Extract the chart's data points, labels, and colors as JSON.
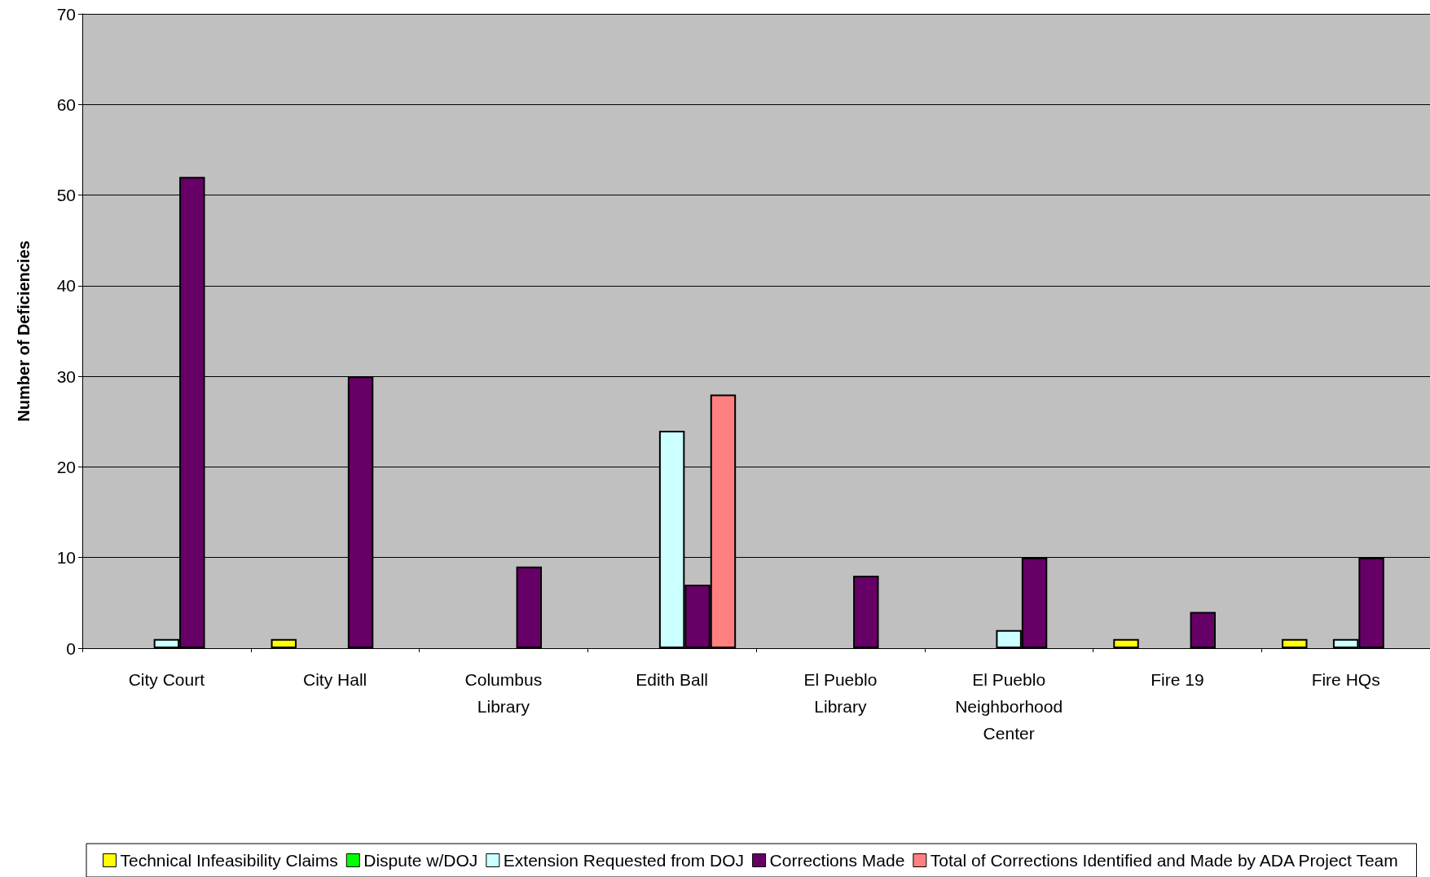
{
  "chart_data": {
    "type": "bar",
    "ylabel": "Number of Deficiencies",
    "categories": [
      "City Court",
      "City Hall",
      "Columbus\nLibrary",
      "Edith Ball",
      "El Pueblo\nLibrary",
      "El Pueblo\nNeighborhood\nCenter",
      "Fire 19",
      "Fire HQs"
    ],
    "series": [
      {
        "name": "Technical Infeasibility Claims",
        "color": "#ffff00",
        "values": [
          null,
          1,
          null,
          null,
          null,
          null,
          1,
          1
        ]
      },
      {
        "name": "Dispute w/DOJ",
        "color": "#00ff00",
        "values": [
          null,
          null,
          null,
          null,
          null,
          null,
          null,
          null
        ]
      },
      {
        "name": "Extension Requested from DOJ",
        "color": "#ccffff",
        "values": [
          1,
          null,
          null,
          24,
          null,
          2,
          null,
          1
        ]
      },
      {
        "name": "Corrections Made",
        "color": "#660066",
        "values": [
          52,
          30,
          9,
          7,
          8,
          10,
          4,
          10
        ]
      },
      {
        "name": "Total of Corrections Identified and Made by ADA Project Team",
        "color": "#ff8080",
        "values": [
          null,
          null,
          null,
          28,
          null,
          null,
          null,
          null
        ]
      }
    ],
    "ylim": [
      0,
      70
    ],
    "yticks": [
      0,
      10,
      20,
      30,
      40,
      50,
      60,
      70
    ],
    "grid": "y",
    "legend": "bottom"
  }
}
